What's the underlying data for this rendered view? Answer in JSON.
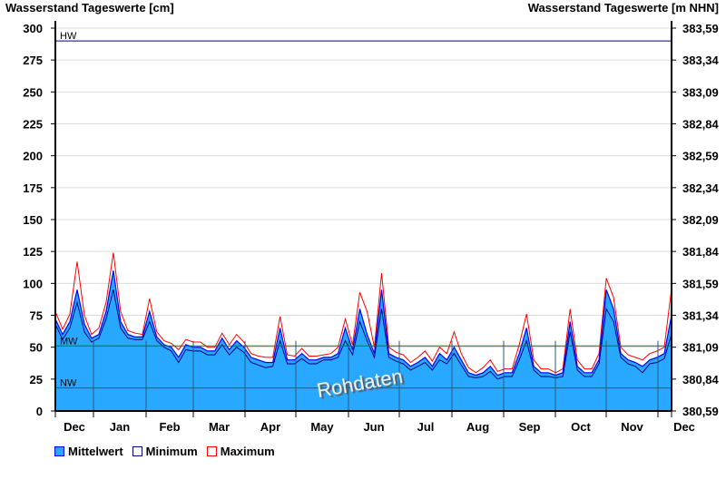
{
  "chart_data": {
    "type": "area",
    "title_left": "Wasserstand Tageswerte [cm]",
    "title_right": "Wasserstand Tageswerte [m NHN]",
    "ylim": [
      0,
      300
    ],
    "yticks": [
      0,
      25,
      50,
      75,
      100,
      125,
      150,
      175,
      200,
      225,
      250,
      275,
      300
    ],
    "yticks_right": [
      "380,59",
      "380,84",
      "381,09",
      "381,34",
      "381,59",
      "381,84",
      "382,09",
      "382,34",
      "382,59",
      "382,84",
      "383,09",
      "383,34",
      "383,59"
    ],
    "months": [
      "Dec",
      "Jan",
      "Feb",
      "Mar",
      "Apr",
      "May",
      "Jun",
      "Jul",
      "Aug",
      "Sep",
      "Oct",
      "Nov",
      "Dec"
    ],
    "reference_lines": [
      {
        "label": "HW",
        "value": 290,
        "color": "#000080"
      },
      {
        "label": "MW",
        "value": 51,
        "color": "#008000"
      },
      {
        "label": "NW",
        "value": 18,
        "color": "#ff0000"
      }
    ],
    "series": [
      {
        "name": "Mittelwert",
        "color": "#29a8ff",
        "values": [
          72,
          60,
          70,
          95,
          68,
          57,
          60,
          78,
          110,
          70,
          60,
          58,
          58,
          78,
          58,
          52,
          50,
          42,
          52,
          50,
          50,
          47,
          47,
          57,
          48,
          55,
          50,
          42,
          40,
          38,
          38,
          65,
          40,
          40,
          45,
          40,
          40,
          42,
          42,
          45,
          65,
          48,
          80,
          60,
          45,
          95,
          45,
          42,
          40,
          35,
          38,
          42,
          35,
          45,
          40,
          50,
          40,
          30,
          28,
          30,
          35,
          28,
          30,
          30,
          45,
          65,
          35,
          30,
          30,
          28,
          30,
          70,
          35,
          30,
          30,
          40,
          95,
          80,
          45,
          40,
          38,
          35,
          40,
          42,
          45,
          75
        ]
      },
      {
        "name": "Minimum",
        "color": "#000080",
        "values": [
          68,
          56,
          65,
          85,
          62,
          54,
          57,
          72,
          95,
          65,
          57,
          56,
          56,
          70,
          55,
          50,
          47,
          38,
          48,
          47,
          47,
          44,
          44,
          52,
          44,
          50,
          46,
          38,
          36,
          34,
          35,
          55,
          37,
          37,
          41,
          37,
          37,
          40,
          40,
          42,
          55,
          44,
          70,
          55,
          42,
          80,
          42,
          39,
          37,
          32,
          35,
          38,
          32,
          40,
          37,
          45,
          36,
          27,
          26,
          27,
          31,
          25,
          27,
          27,
          40,
          55,
          32,
          27,
          27,
          26,
          27,
          62,
          32,
          27,
          27,
          37,
          80,
          70,
          42,
          37,
          35,
          30,
          37,
          38,
          41,
          60
        ]
      },
      {
        "name": "Maximum",
        "color": "#ff0000",
        "values": [
          78,
          64,
          76,
          117,
          75,
          60,
          65,
          85,
          124,
          78,
          63,
          61,
          60,
          88,
          62,
          55,
          53,
          48,
          56,
          54,
          54,
          50,
          50,
          61,
          52,
          60,
          54,
          45,
          43,
          42,
          42,
          74,
          44,
          43,
          49,
          43,
          43,
          44,
          45,
          50,
          72,
          52,
          93,
          78,
          50,
          108,
          50,
          46,
          44,
          38,
          42,
          47,
          39,
          50,
          45,
          62,
          45,
          34,
          30,
          34,
          40,
          31,
          33,
          33,
          52,
          76,
          40,
          33,
          33,
          30,
          33,
          80,
          40,
          33,
          33,
          45,
          104,
          89,
          50,
          44,
          42,
          40,
          45,
          47,
          50,
          96
        ]
      }
    ],
    "legend": [
      "Mittelwert",
      "Minimum",
      "Maximum"
    ],
    "legend_placement": "bottom-left",
    "watermark": "Rohdaten"
  }
}
